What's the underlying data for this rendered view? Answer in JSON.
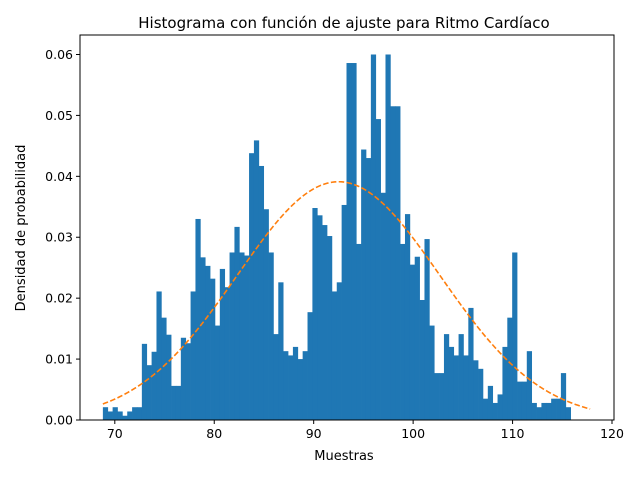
{
  "chart_data": {
    "type": "bar",
    "title": "Histograma con función de ajuste para Ritmo Cardíaco",
    "xlabel": "Muestras",
    "ylabel": "Densidad de probabilidad",
    "xlim": [
      66.5,
      120.2
    ],
    "ylim": [
      0,
      0.0632
    ],
    "x_ticks": [
      70,
      80,
      90,
      100,
      110,
      120
    ],
    "y_ticks": [
      0.0,
      0.01,
      0.02,
      0.03,
      0.04,
      0.05,
      0.06
    ],
    "y_tick_labels": [
      "0.00",
      "0.01",
      "0.02",
      "0.03",
      "0.04",
      "0.05",
      "0.06"
    ],
    "grid": false,
    "bar_color": "#1f77b4",
    "fit_color": "#ff7f0e",
    "bins": {
      "start": 68.8,
      "width": 0.49,
      "values": [
        0.0021,
        0.0014,
        0.0021,
        0.0014,
        0.0007,
        0.0014,
        0.0021,
        0.0021,
        0.0125,
        0.009,
        0.0112,
        0.0211,
        0.0168,
        0.014,
        0.0056,
        0.0056,
        0.0135,
        0.0126,
        0.0211,
        0.033,
        0.0267,
        0.0253,
        0.0232,
        0.0155,
        0.0248,
        0.0218,
        0.0275,
        0.0317,
        0.0275,
        0.027,
        0.0438,
        0.0459,
        0.0417,
        0.0346,
        0.0275,
        0.0141,
        0.0226,
        0.0113,
        0.0106,
        0.012,
        0.01,
        0.0113,
        0.0177,
        0.0348,
        0.0336,
        0.032,
        0.0302,
        0.0211,
        0.0226,
        0.0353,
        0.0586,
        0.0586,
        0.0289,
        0.0444,
        0.043,
        0.06,
        0.0494,
        0.0373,
        0.06,
        0.0515,
        0.0515,
        0.0289,
        0.0338,
        0.0255,
        0.0268,
        0.0197,
        0.0297,
        0.0155,
        0.0077,
        0.0077,
        0.0141,
        0.012,
        0.0106,
        0.0141,
        0.0106,
        0.0184,
        0.0098,
        0.0084,
        0.0035,
        0.0056,
        0.0028,
        0.0042,
        0.012,
        0.0168,
        0.0275,
        0.0063,
        0.0063,
        0.0113,
        0.0028,
        0.0021,
        0.0028,
        0.0028,
        0.0035,
        0.0035,
        0.0077,
        0.0021,
        0.0,
        0.0,
        0.0,
        0.0
      ]
    },
    "bin_count": 100,
    "fit": {
      "type": "normal-pdf",
      "mean": 92.5,
      "sd": 10.2,
      "x_range": [
        68.8,
        117.8
      ],
      "style": "dashed"
    }
  }
}
